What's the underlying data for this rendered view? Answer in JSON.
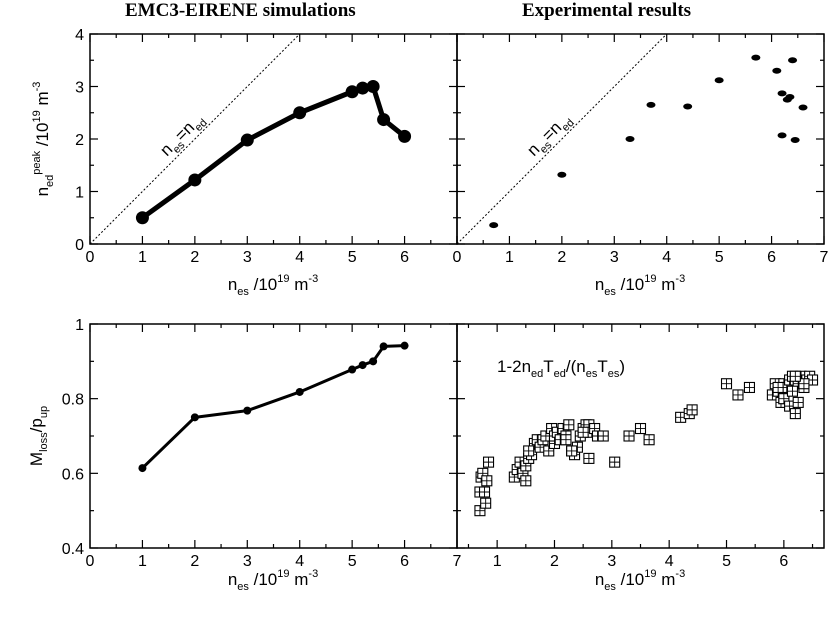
{
  "titles": {
    "left": "EMC3-EIRENE simulations",
    "right": "Experimental results"
  },
  "labels": {
    "xlabel_parts": [
      "n",
      "es",
      " /10",
      "19",
      " m",
      "-3"
    ],
    "ylabel_top_parts": [
      "n",
      "ed",
      "peak",
      " /10",
      "19",
      " m",
      "-3"
    ],
    "ylabel_bottom_parts": [
      "M",
      "loss",
      "/p",
      "up"
    ],
    "identity_parts": [
      "n",
      "es",
      "=n",
      "ed"
    ],
    "formula_parts": [
      "1-2n",
      "ed",
      "T",
      "ed",
      "/(n",
      "es",
      "T",
      "es",
      ")"
    ]
  },
  "colors": {
    "ink": "#000000",
    "background": "#ffffff"
  },
  "chart_data": [
    {
      "id": "sim-peak",
      "type": "line",
      "title": "EMC3-EIRENE simulations",
      "xlabel": "n_es /10^19 m^-3",
      "ylabel": "n_ed^peak /10^19 m^-3",
      "xlim": [
        0,
        7
      ],
      "ylim": [
        0,
        4
      ],
      "xticks": [
        0,
        1,
        2,
        3,
        4,
        5,
        6
      ],
      "yticks": [
        0,
        1,
        2,
        3,
        4
      ],
      "grid": false,
      "series": [
        {
          "x": [
            1,
            2,
            3,
            4,
            5,
            5.2,
            5.4,
            5.6,
            6
          ],
          "y": [
            0.5,
            1.22,
            1.98,
            2.5,
            2.9,
            2.97,
            3.0,
            2.37,
            2.05
          ]
        }
      ],
      "reference_line": {
        "label": "n_es=n_ed",
        "slope": 1
      }
    },
    {
      "id": "exp-peak",
      "type": "scatter",
      "title": "Experimental results",
      "xlabel": "n_es /10^19 m^-3",
      "xlim": [
        0,
        7
      ],
      "ylim": [
        0,
        4
      ],
      "xticks": [
        0,
        1,
        2,
        3,
        4,
        5,
        6,
        7
      ],
      "grid": false,
      "series": [
        {
          "x": [
            0.7,
            2.0,
            3.3,
            3.7,
            4.4,
            5.0,
            5.7,
            6.1,
            6.2,
            6.2,
            6.3,
            6.35,
            6.4,
            6.45,
            6.6
          ],
          "y": [
            0.36,
            1.32,
            2.0,
            2.65,
            2.62,
            3.12,
            3.55,
            3.3,
            2.87,
            2.07,
            2.75,
            2.8,
            3.5,
            1.98,
            2.6
          ]
        }
      ],
      "reference_line": {
        "label": "n_es=n_ed",
        "slope": 1
      }
    },
    {
      "id": "sim-mloss",
      "type": "line",
      "xlabel": "n_es /10^19 m^-3",
      "ylabel": "M_loss/p_up",
      "xlim": [
        0,
        7
      ],
      "ylim": [
        0.4,
        1.0
      ],
      "xticks": [
        0,
        1,
        2,
        3,
        4,
        5,
        6,
        7
      ],
      "yticks": [
        0.4,
        0.6,
        0.8,
        1.0
      ],
      "grid": false,
      "series": [
        {
          "x": [
            1,
            2,
            3,
            4,
            5,
            5.2,
            5.4,
            5.6,
            6
          ],
          "y": [
            0.614,
            0.75,
            0.768,
            0.818,
            0.878,
            0.89,
            0.9,
            0.94,
            0.942
          ]
        }
      ]
    },
    {
      "id": "exp-formula",
      "type": "scatter",
      "xlabel": "n_es /10^19 m^-3",
      "xlim": [
        0.3,
        6.7
      ],
      "ylim": [
        0.4,
        1.0
      ],
      "xticks": [
        1,
        2,
        3,
        4,
        5,
        6
      ],
      "grid": false,
      "annotation": "1-2n_edT_ed/(n_esT_es)",
      "series": [
        {
          "x": [
            0.7,
            0.7,
            0.72,
            0.75,
            0.78,
            0.8,
            0.82,
            0.85,
            1.3,
            1.35,
            1.4,
            1.45,
            1.5,
            1.55,
            1.6,
            1.65,
            1.7,
            1.5,
            1.55,
            1.75,
            1.8,
            1.85,
            1.9,
            1.95,
            2.0,
            2.0,
            2.05,
            2.1,
            2.15,
            2.2,
            2.25,
            2.3,
            2.35,
            2.4,
            2.45,
            2.5,
            2.55,
            2.6,
            2.65,
            2.7,
            2.75,
            2.2,
            2.3,
            2.6,
            2.5,
            2.85,
            3.05,
            3.3,
            3.5,
            3.65,
            4.2,
            4.35,
            4.4,
            5.0,
            5.2,
            5.4,
            5.8,
            5.85,
            5.9,
            5.95,
            6.0,
            6.0,
            6.05,
            6.1,
            6.15,
            6.2,
            6.25,
            6.3,
            6.35,
            6.4,
            6.45,
            6.5,
            5.9,
            6.0,
            6.1,
            6.2,
            6.15,
            6.25,
            6.35,
            6.2
          ],
          "y": [
            0.5,
            0.55,
            0.59,
            0.6,
            0.55,
            0.52,
            0.58,
            0.63,
            0.59,
            0.61,
            0.63,
            0.6,
            0.62,
            0.64,
            0.65,
            0.68,
            0.69,
            0.58,
            0.66,
            0.67,
            0.69,
            0.7,
            0.66,
            0.72,
            0.68,
            0.7,
            0.71,
            0.69,
            0.72,
            0.7,
            0.73,
            0.66,
            0.65,
            0.67,
            0.7,
            0.72,
            0.73,
            0.73,
            0.71,
            0.72,
            0.7,
            0.69,
            0.66,
            0.64,
            0.71,
            0.7,
            0.63,
            0.7,
            0.72,
            0.69,
            0.75,
            0.76,
            0.77,
            0.84,
            0.81,
            0.83,
            0.81,
            0.84,
            0.82,
            0.79,
            0.8,
            0.84,
            0.83,
            0.85,
            0.86,
            0.85,
            0.84,
            0.86,
            0.83,
            0.85,
            0.86,
            0.85,
            0.83,
            0.8,
            0.78,
            0.76,
            0.82,
            0.79,
            0.84,
            0.86
          ]
        }
      ]
    }
  ]
}
